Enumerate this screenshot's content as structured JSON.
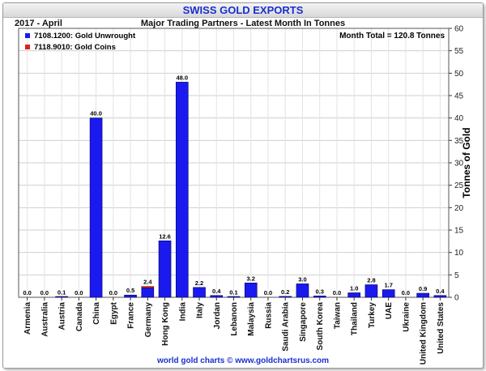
{
  "header": {
    "title": "SWISS GOLD EXPORTS",
    "period": "2017 - April",
    "subtitle": "Major Trading Partners - Latest Month In Tonnes"
  },
  "footer": {
    "credit": "world gold charts © www.goldchartsrus.com"
  },
  "colors": {
    "bar_fill": "#1a1aee",
    "coins": "#e02020",
    "title_text": "#1a2fd0",
    "grid": "#cfcfcf"
  },
  "chart_data": {
    "type": "bar",
    "title": "SWISS GOLD EXPORTS",
    "subtitle": "Major Trading Partners - Latest Month In Tonnes",
    "ylabel": "Tonnes of Gold",
    "ylim": [
      0,
      60
    ],
    "yticks": [
      0,
      5,
      10,
      15,
      20,
      25,
      30,
      35,
      40,
      45,
      50,
      55,
      60
    ],
    "grid": true,
    "legend_position": "top-left",
    "annotation": "Month Total = 120.8 Tonnes",
    "categories": [
      "Armenia",
      "Australia",
      "Austria",
      "Canada",
      "China",
      "Egypt",
      "France",
      "Germany",
      "Hong Kong",
      "India",
      "Italy",
      "Jordan",
      "Lebanon",
      "Malaysia",
      "Russia",
      "Saudi Arabia",
      "Singapore",
      "South Korea",
      "Taiwan",
      "Thailand",
      "Turkey",
      "UAE",
      "Ukraine",
      "United Kingdom",
      "United States"
    ],
    "totals": [
      "0.0",
      "0.0",
      "0.1",
      "0.0",
      "40.0",
      "0.0",
      "0.5",
      "2.4",
      "12.6",
      "48.0",
      "2.2",
      "0.4",
      "0.1",
      "3.2",
      "0.0",
      "0.2",
      "3.0",
      "0.3",
      "0.0",
      "1.0",
      "2.8",
      "1.7",
      "0.0",
      "0.9",
      "0.4"
    ],
    "series": [
      {
        "name": "7108.1200: Gold Unwrought",
        "color": "#1a1aee",
        "values": [
          0.0,
          0.0,
          0.1,
          0.0,
          40.0,
          0.0,
          0.5,
          2.1,
          12.6,
          48.0,
          2.2,
          0.4,
          0.1,
          3.2,
          0.0,
          0.2,
          3.0,
          0.3,
          0.0,
          1.0,
          2.8,
          1.7,
          0.0,
          0.9,
          0.4
        ]
      },
      {
        "name": "7118.9010: Gold Coins",
        "color": "#e02020",
        "values": [
          0,
          0,
          0,
          0,
          0,
          0,
          0,
          0.3,
          0,
          0,
          0,
          0,
          0,
          0,
          0,
          0,
          0,
          0,
          0,
          0,
          0,
          0,
          0,
          0,
          0
        ]
      }
    ]
  }
}
